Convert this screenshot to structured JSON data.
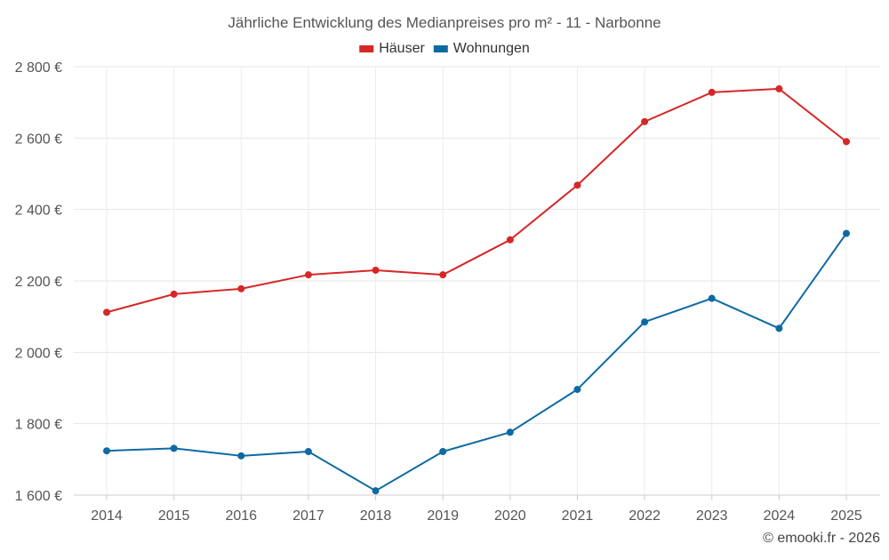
{
  "chart_data": {
    "type": "line",
    "title": "Jährliche Entwicklung des Medianpreises pro m² - 11 - Narbonne",
    "xlabel": "",
    "ylabel": "",
    "categories": [
      "2014",
      "2015",
      "2016",
      "2017",
      "2018",
      "2019",
      "2020",
      "2021",
      "2022",
      "2023",
      "2024",
      "2025"
    ],
    "ylim": [
      1600,
      2800
    ],
    "yticks": [
      1600,
      1800,
      2000,
      2200,
      2400,
      2600,
      2800
    ],
    "ytick_labels": [
      "1 600 €",
      "1 800 €",
      "2 000 €",
      "2 200 €",
      "2 400 €",
      "2 600 €",
      "2 800 €"
    ],
    "grid": true,
    "legend_position": "top-center",
    "series": [
      {
        "name": "Häuser",
        "color": "#d62728",
        "values": [
          2112,
          2163,
          2178,
          2217,
          2230,
          2217,
          2315,
          2468,
          2646,
          2728,
          2738,
          2590
        ]
      },
      {
        "name": "Wohnungen",
        "color": "#0c6aa3",
        "values": [
          1724,
          1731,
          1710,
          1722,
          1612,
          1722,
          1776,
          1896,
          2085,
          2151,
          2067,
          2333
        ]
      }
    ],
    "credit": "© emooki.fr - 2026"
  }
}
